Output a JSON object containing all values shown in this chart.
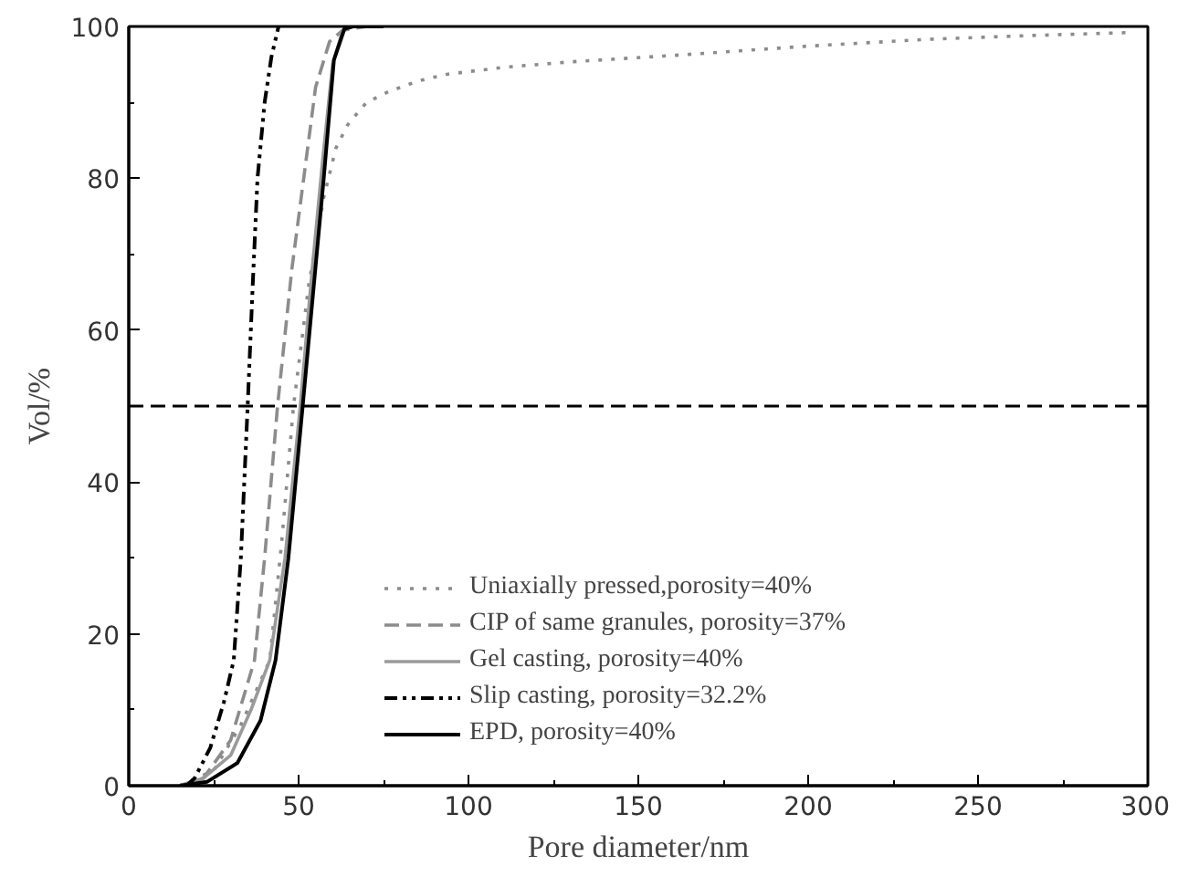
{
  "chart_data": {
    "type": "line",
    "xlabel": "Pore diameter/nm",
    "ylabel": "Vol/%",
    "xlim": [
      0,
      300
    ],
    "ylim": [
      0,
      100
    ],
    "xticks": [
      0,
      50,
      100,
      150,
      200,
      250,
      300
    ],
    "yticks": [
      0,
      20,
      40,
      60,
      80,
      100
    ],
    "grid": false,
    "legend": "bottom right",
    "marker": "none",
    "ref_lines": [
      {
        "axis": "y",
        "value": 50,
        "color": "#000000",
        "line_style": "dashed"
      }
    ],
    "series": [
      {
        "name": "Uniaxially pressed,porosity=40%",
        "color": "#8c8c8c",
        "line_style": "dotted",
        "x": [
          15,
          25,
          33,
          41.5,
          45,
          48.5,
          53,
          57.4,
          61,
          64.4,
          66.2,
          70,
          75.9,
          85,
          93.6,
          110,
          128.9,
          164.2,
          199.5,
          234.8,
          265,
          294.8
        ],
        "values": [
          0,
          2,
          8,
          16.5,
          32,
          50,
          66,
          77.5,
          84,
          87,
          88,
          90,
          91.3,
          92.8,
          93.7,
          94.6,
          95.3,
          96.3,
          97.4,
          98.3,
          98.8,
          99.2
        ]
      },
      {
        "name": "CIP of same granules, porosity=37%",
        "color": "#8c8c8c",
        "line_style": "dashed",
        "x": [
          15,
          22,
          30,
          37,
          40,
          43.8,
          48,
          51.5,
          55,
          59.1,
          63,
          70
        ],
        "values": [
          0,
          1,
          6,
          16.5,
          30,
          50,
          68,
          80,
          92,
          98,
          99.5,
          100
        ]
      },
      {
        "name": "Gel casting, porosity=40%",
        "color": "#9a9a9a",
        "line_style": "solid",
        "x": [
          15,
          22,
          30,
          36,
          41.5,
          46,
          50.5,
          54,
          57,
          60,
          63,
          66,
          75
        ],
        "values": [
          0,
          1,
          4,
          10,
          16.5,
          30,
          50,
          68,
          82,
          95,
          99.5,
          100,
          100
        ]
      },
      {
        "name": "Slip casting, porosity=32.2%",
        "color": "#000000",
        "line_style": "dashdot",
        "x": [
          17,
          19.4,
          24,
          28,
          30.9,
          33,
          35,
          36.5,
          37.9,
          40,
          42,
          44.1
        ],
        "values": [
          0,
          1,
          5,
          11,
          16.5,
          30,
          50,
          66,
          80,
          90,
          96,
          100
        ]
      },
      {
        "name": "EPD, porosity=40%",
        "color": "#000000",
        "line_style": "solid",
        "x": [
          15,
          23,
          32,
          38.8,
          43.2,
          47,
          51.2,
          54.5,
          57.4,
          60.4,
          63.5,
          66,
          75
        ],
        "values": [
          0,
          0.5,
          3,
          8.6,
          16.5,
          30,
          50,
          66,
          80,
          95.6,
          99.7,
          100,
          100
        ]
      }
    ]
  }
}
